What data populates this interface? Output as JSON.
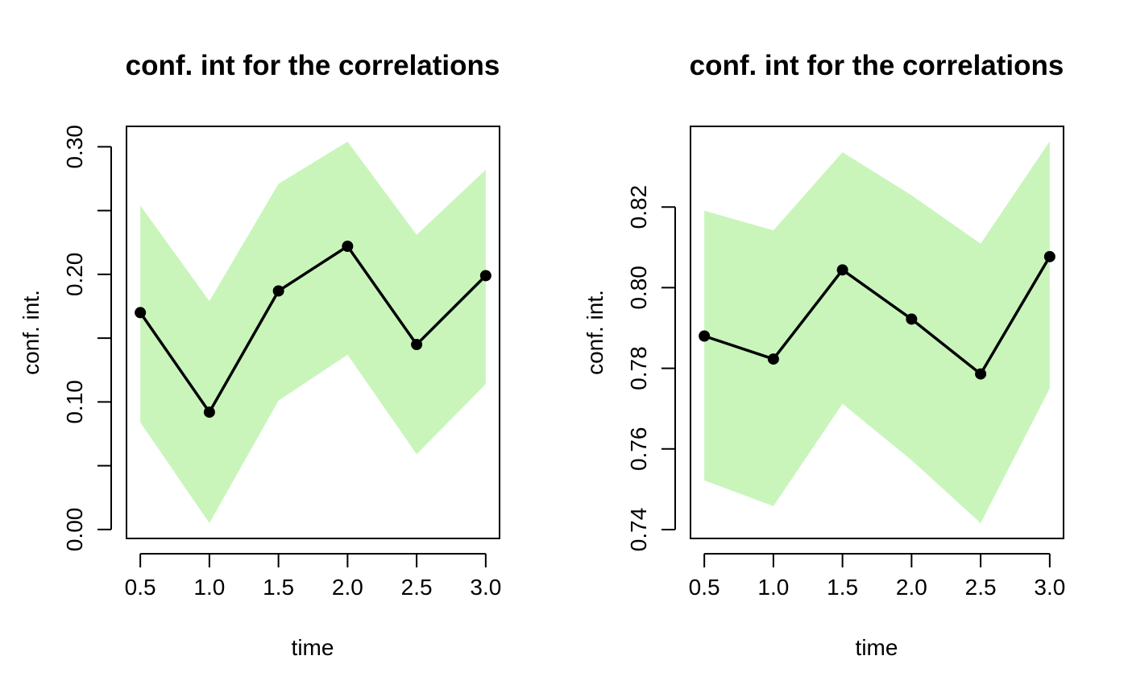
{
  "chart_data": [
    {
      "type": "line",
      "title": "conf. int for the correlations",
      "xlabel": "time",
      "ylabel": "conf. int.",
      "x": [
        0.5,
        1.0,
        1.5,
        2.0,
        2.5,
        3.0
      ],
      "xticks": [
        "0.5",
        "1.0",
        "1.5",
        "2.0",
        "2.5",
        "3.0"
      ],
      "yticks": [
        "0.00",
        "",
        "0.10",
        "",
        "0.20",
        "",
        "0.30"
      ],
      "ytick_values": [
        0.0,
        0.05,
        0.1,
        0.15,
        0.2,
        0.25,
        0.3
      ],
      "ylim": [
        -0.007,
        0.316
      ],
      "xlim": [
        0.4,
        3.1
      ],
      "series": [
        {
          "values": [
            0.17,
            0.092,
            0.187,
            0.222,
            0.145,
            0.199
          ]
        }
      ],
      "band": {
        "lower": [
          0.084,
          0.005,
          0.101,
          0.137,
          0.059,
          0.114
        ],
        "upper": [
          0.254,
          0.179,
          0.271,
          0.304,
          0.231,
          0.282
        ],
        "color": "#c9f5bb"
      },
      "grid": false
    },
    {
      "type": "line",
      "title": "conf. int for the correlations",
      "xlabel": "time",
      "ylabel": "conf. int.",
      "x": [
        0.5,
        1.0,
        1.5,
        2.0,
        2.5,
        3.0
      ],
      "xticks": [
        "0.5",
        "1.0",
        "1.5",
        "2.0",
        "2.5",
        "3.0"
      ],
      "yticks": [
        "0.74",
        "0.76",
        "0.78",
        "0.80",
        "0.82"
      ],
      "ytick_values": [
        0.74,
        0.76,
        0.78,
        0.8,
        0.82
      ],
      "ylim": [
        0.7378,
        0.84
      ],
      "xlim": [
        0.4,
        3.1
      ],
      "series": [
        {
          "values": [
            0.788,
            0.7823,
            0.8044,
            0.7922,
            0.7786,
            0.8077
          ]
        }
      ],
      "band": {
        "lower": [
          0.7522,
          0.7458,
          0.7712,
          0.7572,
          0.7416,
          0.775
        ],
        "upper": [
          0.8191,
          0.8142,
          0.8336,
          0.8229,
          0.8109,
          0.8363
        ],
        "color": "#c9f5bb"
      },
      "grid": false
    }
  ]
}
